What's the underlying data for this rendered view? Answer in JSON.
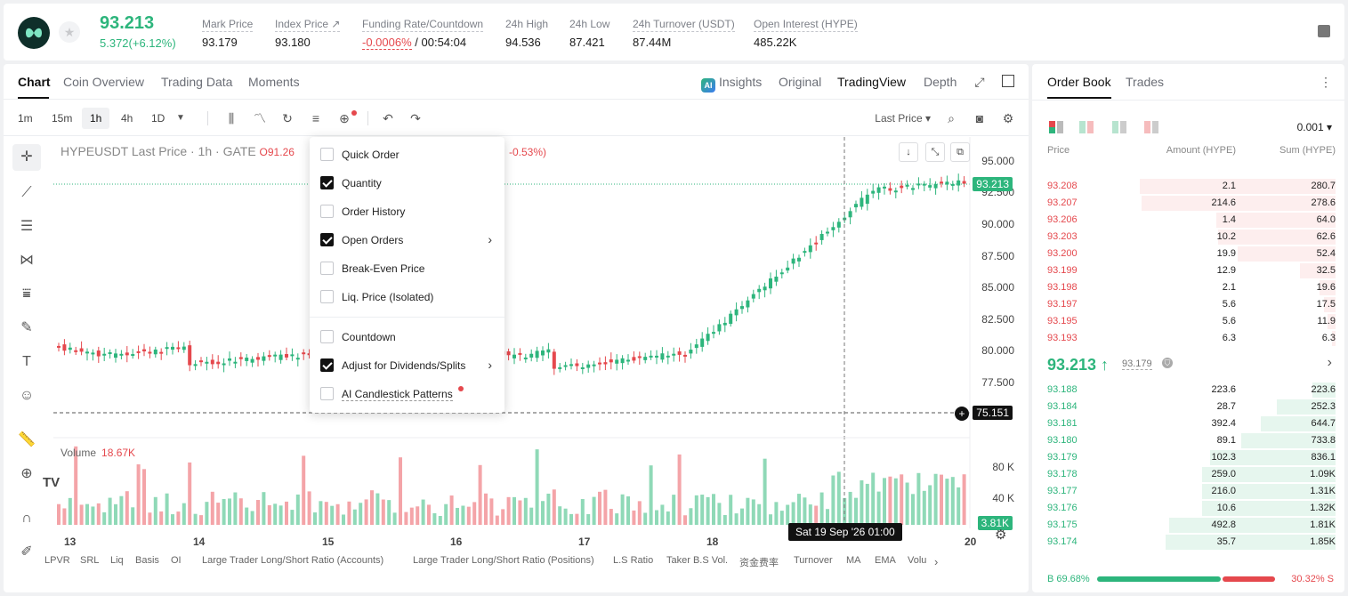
{
  "ticker": {
    "last_price": "93.213",
    "change": "5.372(+6.12%)",
    "stats": [
      {
        "label": "Mark Price",
        "value": "93.179"
      },
      {
        "label": "Index Price ↗",
        "value": "93.180"
      },
      {
        "label": "Funding Rate/Countdown",
        "value_red": "-0.0006%",
        "value": "/ 00:54:04"
      },
      {
        "label": "24h High",
        "value": "94.536"
      },
      {
        "label": "24h Low",
        "value": "87.421"
      },
      {
        "label": "24h Turnover (USDT)",
        "value": "87.44M"
      },
      {
        "label": "Open Interest (HYPE)",
        "value": "485.22K"
      }
    ]
  },
  "chart_tabs": [
    "Chart",
    "Coin Overview",
    "Trading Data",
    "Moments"
  ],
  "view_tabs": {
    "insights": "Insights",
    "original": "Original",
    "tradingview": "TradingView",
    "depth": "Depth",
    "ai_badge": "AI"
  },
  "timeframes": [
    "1m",
    "15m",
    "1h",
    "4h",
    "1D"
  ],
  "price_type": "Last Price ▾",
  "legend": {
    "title": "HYPEUSDT Last Price · 1h · GATE",
    "o": "O91.26",
    "pct": "-0.53%)"
  },
  "volume": {
    "label": "Volume",
    "value": "18.67K"
  },
  "price_axis": [
    "95.000",
    "92.500",
    "90.000",
    "87.500",
    "85.000",
    "82.500",
    "80.000",
    "77.500"
  ],
  "price_tags": {
    "last": "93.213",
    "cross": "75.151",
    "vol": "3.81K"
  },
  "vol_axis": [
    "80 K",
    "40 K"
  ],
  "dates": [
    "13",
    "14",
    "15",
    "16",
    "17",
    "18",
    "20"
  ],
  "crosshair_label": "Sat 19 Sep '26   01:00",
  "indicators": [
    "LPVR",
    "SRL",
    "Liq",
    "Basis",
    "OI",
    "Large Trader Long/Short Ratio (Accounts)",
    "Large Trader Long/Short Ratio (Positions)",
    "L.S Ratio",
    "Taker B.S Vol.",
    "资金费率",
    "Turnover",
    "MA",
    "EMA",
    "Volu"
  ],
  "menu": {
    "items": [
      {
        "label": "Quick Order",
        "checked": false
      },
      {
        "label": "Quantity",
        "checked": true
      },
      {
        "label": "Order History",
        "checked": false
      },
      {
        "label": "Open Orders",
        "checked": true
      },
      {
        "label": "Break-Even Price",
        "checked": false
      },
      {
        "label": "Liq. Price (Isolated)",
        "checked": false
      },
      {
        "label": "Countdown",
        "checked": false
      },
      {
        "label": "Adjust for Dividends/Splits",
        "checked": true
      },
      {
        "label": "AI Candlestick Patterns",
        "checked": false
      }
    ]
  },
  "orderbook": {
    "tabs": [
      "Order Book",
      "Trades"
    ],
    "step": "0.001 ▾",
    "headers": {
      "price": "Price",
      "amount": "Amount (HYPE)",
      "sum": "Sum (HYPE)"
    },
    "asks": [
      {
        "price": "93.208",
        "amount": "2.1",
        "sum": "280.7",
        "depth": 1.0
      },
      {
        "price": "93.207",
        "amount": "214.6",
        "sum": "278.6",
        "depth": 0.99
      },
      {
        "price": "93.206",
        "amount": "1.4",
        "sum": "64.0",
        "depth": 0.61
      },
      {
        "price": "93.203",
        "amount": "10.2",
        "sum": "62.6",
        "depth": 0.6
      },
      {
        "price": "93.200",
        "amount": "19.9",
        "sum": "52.4",
        "depth": 0.5
      },
      {
        "price": "93.199",
        "amount": "12.9",
        "sum": "32.5",
        "depth": 0.18
      },
      {
        "price": "93.198",
        "amount": "2.1",
        "sum": "19.6",
        "depth": 0.08
      },
      {
        "price": "93.197",
        "amount": "5.6",
        "sum": "17.5",
        "depth": 0.06
      },
      {
        "price": "93.195",
        "amount": "5.6",
        "sum": "11.9",
        "depth": 0.04
      },
      {
        "price": "93.193",
        "amount": "6.3",
        "sum": "6.3",
        "depth": 0.02
      }
    ],
    "mid": {
      "price": "93.213 ↑",
      "mark": "93.179"
    },
    "bids": [
      {
        "price": "93.188",
        "amount": "223.6",
        "sum": "223.6",
        "depth": 0.12
      },
      {
        "price": "93.184",
        "amount": "28.7",
        "sum": "252.3",
        "depth": 0.3
      },
      {
        "price": "93.181",
        "amount": "392.4",
        "sum": "644.7",
        "depth": 0.38
      },
      {
        "price": "93.180",
        "amount": "89.1",
        "sum": "733.8",
        "depth": 0.48
      },
      {
        "price": "93.179",
        "amount": "102.3",
        "sum": "836.1",
        "depth": 0.64
      },
      {
        "price": "93.178",
        "amount": "259.0",
        "sum": "1.09K",
        "depth": 0.68
      },
      {
        "price": "93.177",
        "amount": "216.0",
        "sum": "1.31K",
        "depth": 0.68
      },
      {
        "price": "93.176",
        "amount": "10.6",
        "sum": "1.32K",
        "depth": 0.68
      },
      {
        "price": "93.175",
        "amount": "492.8",
        "sum": "1.81K",
        "depth": 0.85
      },
      {
        "price": "93.174",
        "amount": "35.7",
        "sum": "1.85K",
        "depth": 0.87
      }
    ],
    "buy_pct": "B 69.68%",
    "sell_pct": "30.32% S",
    "buy_fraction": 0.6968
  },
  "colors": {
    "up": "#2db57c",
    "down": "#e5484d",
    "up_bg": "#e6f6ee",
    "down_bg": "#fdeeee"
  }
}
